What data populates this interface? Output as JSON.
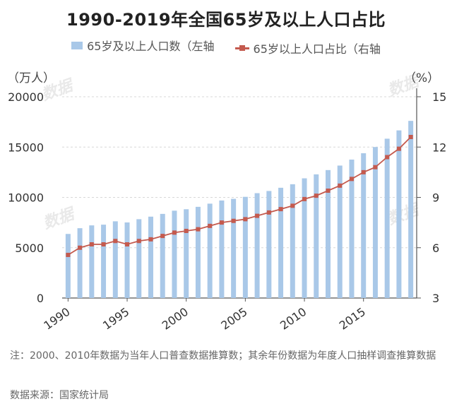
{
  "chart_data": {
    "type": "bar+line",
    "title": "1990-2019年全国65岁及以上人口占比",
    "legend": [
      "65岁及以上人口数（左轴",
      "65岁以上人口占比（右轴"
    ],
    "left_unit": "（万人）",
    "right_unit": "（%）",
    "x": [
      1990,
      1991,
      1992,
      1993,
      1994,
      1995,
      1996,
      1997,
      1998,
      1999,
      2000,
      2001,
      2002,
      2003,
      2004,
      2005,
      2006,
      2007,
      2008,
      2009,
      2010,
      2011,
      2012,
      2013,
      2014,
      2015,
      2016,
      2017,
      2018,
      2019
    ],
    "x_ticks": [
      "1990",
      "1995",
      "2000",
      "2005",
      "2010",
      "2015"
    ],
    "ylim_left": [
      0,
      20000
    ],
    "yticks_left": [
      "0",
      "5000",
      "10000",
      "15000",
      "20000"
    ],
    "ylim_right": [
      3,
      15
    ],
    "yticks_right": [
      "3",
      "6",
      "9",
      "12",
      "15"
    ],
    "series": [
      {
        "name": "65岁及以上人口数",
        "axis": "left",
        "type": "bar",
        "values": [
          6368,
          6938,
          7218,
          7289,
          7622,
          7510,
          7833,
          8085,
          8359,
          8679,
          8821,
          9062,
          9377,
          9692,
          9857,
          10055,
          10419,
          10636,
          10956,
          11307,
          11894,
          12288,
          12714,
          13161,
          13755,
          14386,
          15003,
          15831,
          16658,
          17603
        ]
      },
      {
        "name": "65岁以上人口占比",
        "axis": "right",
        "type": "line",
        "values": [
          5.57,
          6.0,
          6.2,
          6.2,
          6.4,
          6.2,
          6.4,
          6.5,
          6.7,
          6.9,
          7.0,
          7.1,
          7.3,
          7.5,
          7.6,
          7.7,
          7.9,
          8.1,
          8.3,
          8.5,
          8.9,
          9.1,
          9.4,
          9.7,
          10.1,
          10.5,
          10.8,
          11.4,
          11.9,
          12.6
        ]
      }
    ]
  },
  "footnote": "注：2000、2010年数据为当年人口普查数据推算数；其余年份数据为年度人口抽样调查推算数据",
  "source": "数据来源：国家统计局",
  "colors": {
    "bar": "#a9c8e8",
    "line": "#c45a4e",
    "grid": "#d8d8d8"
  }
}
